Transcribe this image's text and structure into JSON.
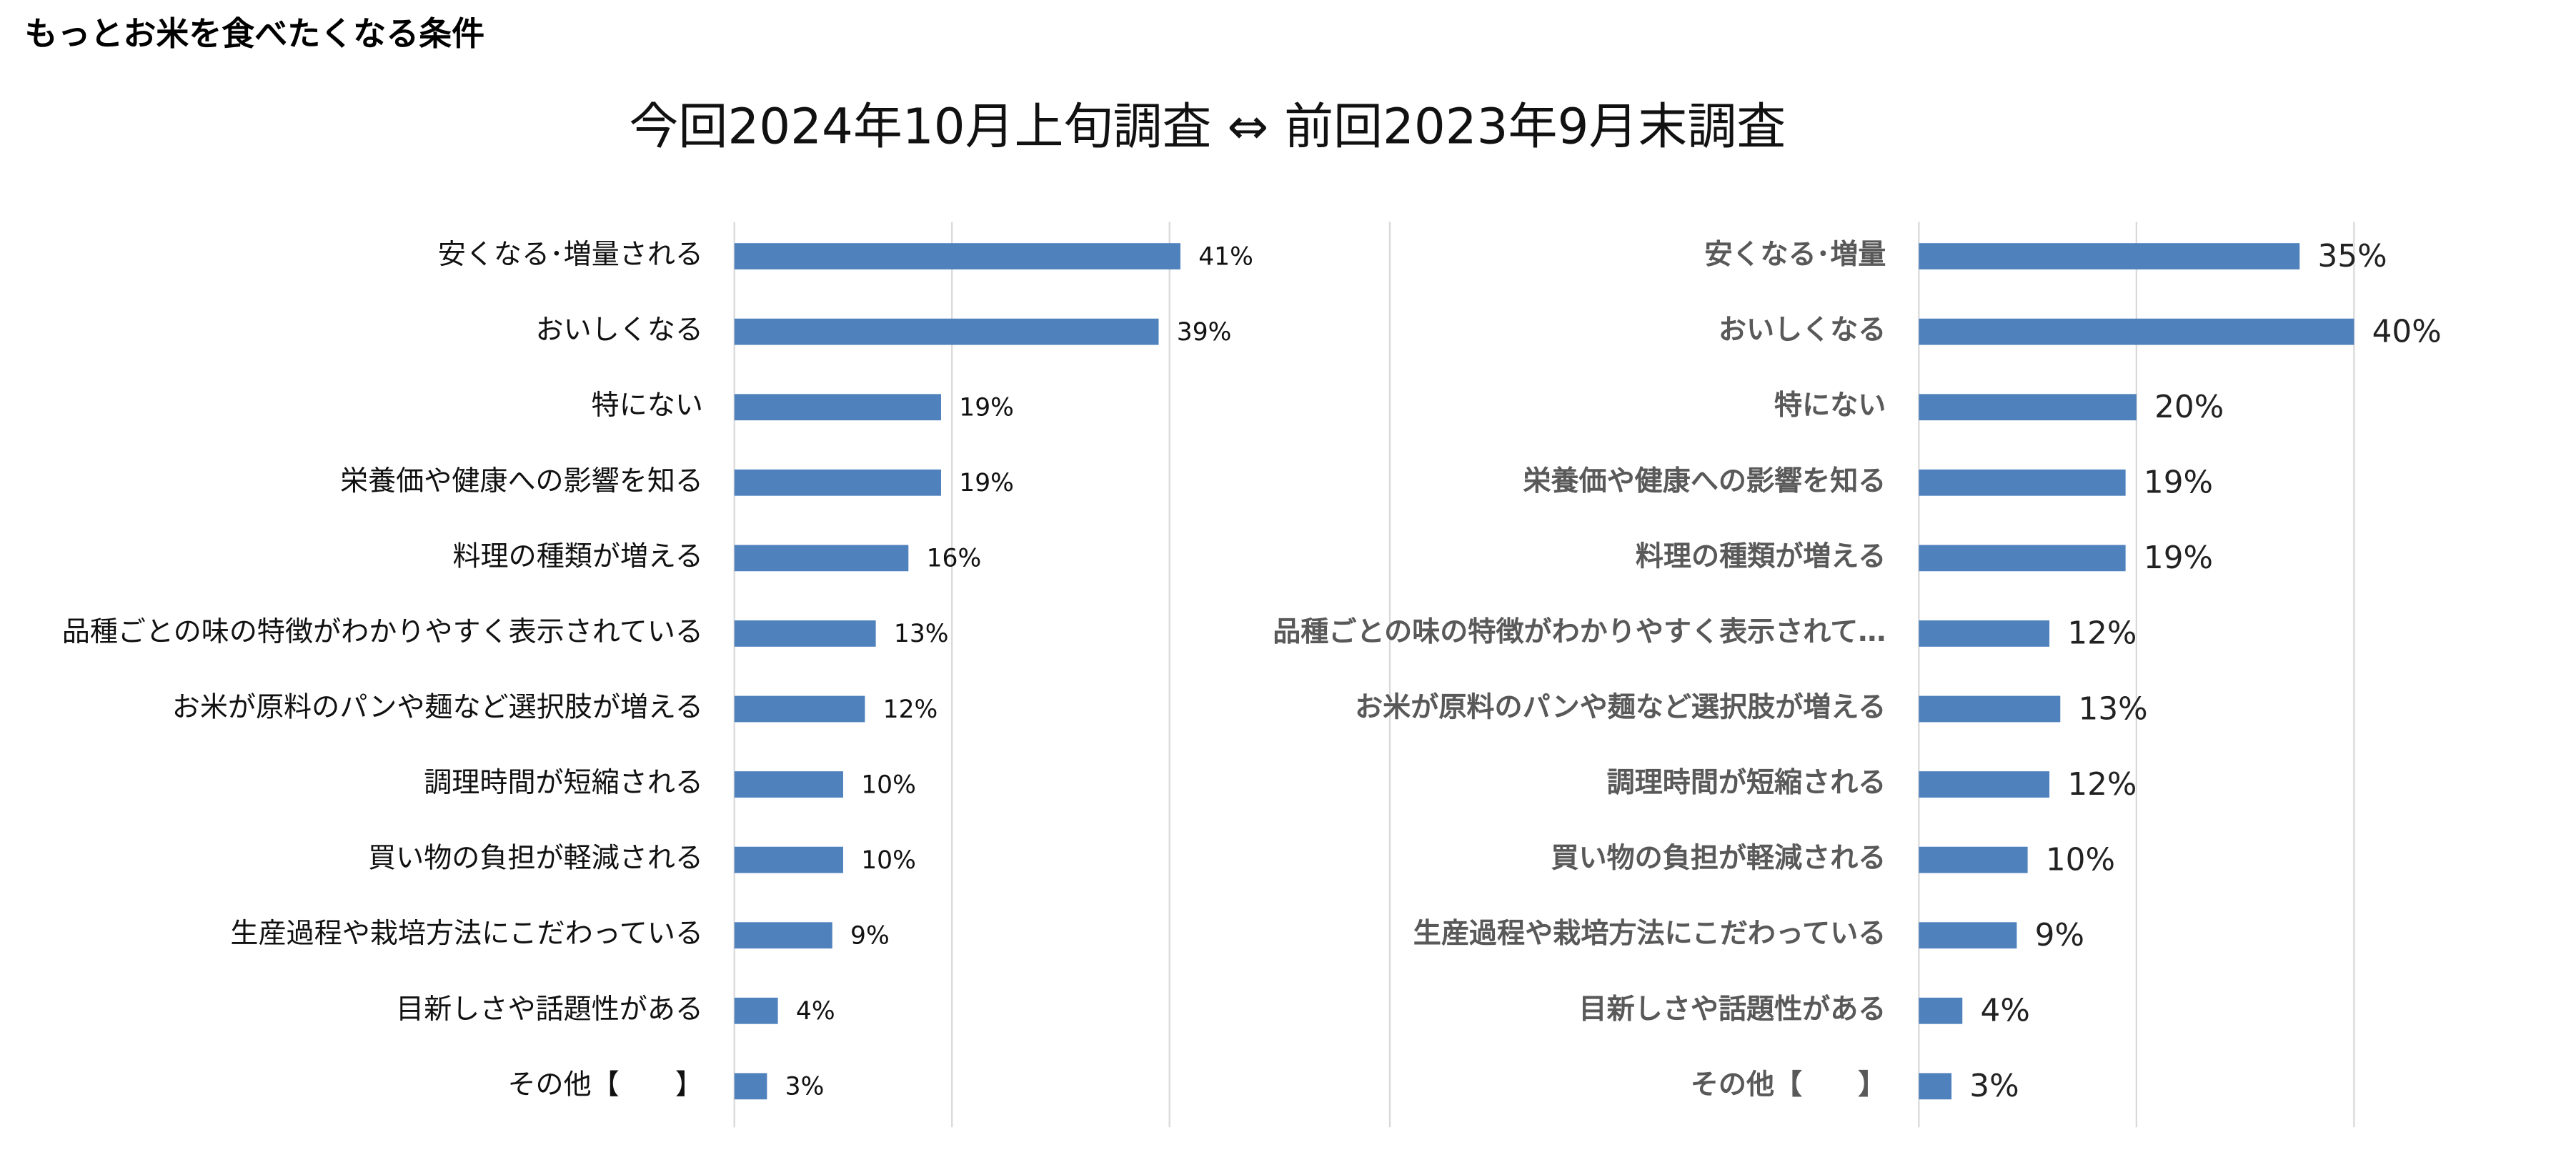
{
  "title": "もっとお米を食べたくなる条件",
  "heading": "今回2024年10月上旬調査 ⇔ 前回2023年9月末調査",
  "chart_data": [
    {
      "type": "bar",
      "orientation": "horizontal",
      "color": "#4f81bd",
      "grid": true,
      "categories": [
        "安くなる･増量される",
        "おいしくなる",
        "特にない",
        "栄養価や健康への影響を知る",
        "料理の種類が増える",
        "品種ごとの味の特徴がわかりやすく表示されている",
        "お米が原料のパンや麺など選択肢が増える",
        "調理時間が短縮される",
        "買い物の負担が軽減される",
        "生産過程や栽培方法にこだわっている",
        "目新しさや話題性がある",
        "その他【　　】"
      ],
      "values": [
        41,
        39,
        19,
        19,
        16,
        13,
        12,
        10,
        10,
        9,
        4,
        3
      ],
      "value_labels": [
        "41%",
        "39%",
        "19%",
        "19%",
        "16%",
        "13%",
        "12%",
        "10%",
        "10%",
        "9%",
        "4%",
        "3%"
      ],
      "xlim": [
        0,
        45
      ],
      "xticks": [
        0,
        20,
        40
      ]
    },
    {
      "type": "bar",
      "orientation": "horizontal",
      "color": "#4f81bd",
      "grid": true,
      "categories": [
        "安くなる･増量",
        "おいしくなる",
        "特にない",
        "栄養価や健康への影響を知る",
        "料理の種類が増える",
        "品種ごとの味の特徴がわかりやすく表示されて…",
        "お米が原料のパンや麺など選択肢が増える",
        "調理時間が短縮される",
        "買い物の負担が軽減される",
        "生産過程や栽培方法にこだわっている",
        "目新しさや話題性がある",
        "その他【　　】"
      ],
      "values": [
        35,
        40,
        20,
        19,
        19,
        12,
        13,
        12,
        10,
        9,
        4,
        3
      ],
      "value_labels": [
        "35%",
        "40%",
        "20%",
        "19%",
        "19%",
        "12%",
        "13%",
        "12%",
        "10%",
        "9%",
        "4%",
        "3%"
      ],
      "xlim": [
        0,
        45
      ],
      "xticks": [
        0,
        20,
        40
      ]
    }
  ]
}
